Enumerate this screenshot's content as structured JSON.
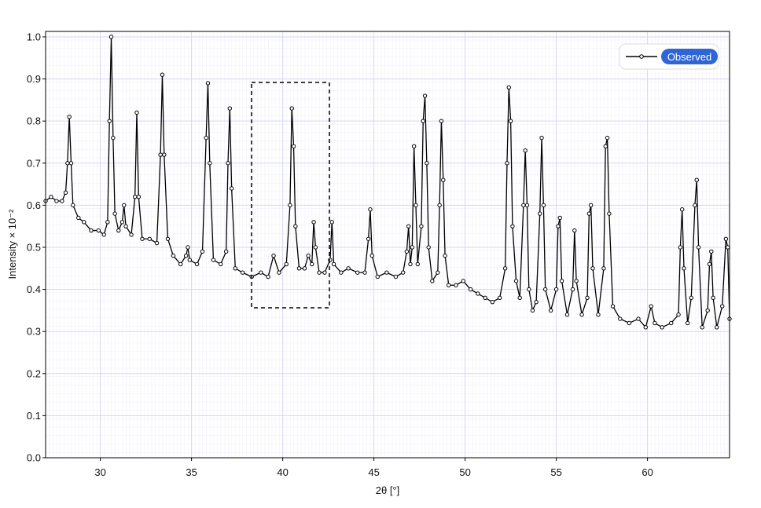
{
  "chart_data": {
    "type": "line",
    "xlabel": "2θ [°]",
    "ylabel": "Intensity × 10⁻²",
    "x": [
      27.0,
      27.3,
      27.6,
      27.9,
      28.1,
      28.2,
      28.3,
      28.4,
      28.5,
      28.8,
      29.1,
      29.5,
      29.9,
      30.2,
      30.4,
      30.5,
      30.6,
      30.7,
      30.8,
      31.0,
      31.2,
      31.3,
      31.4,
      31.7,
      31.9,
      32.0,
      32.1,
      32.3,
      32.7,
      33.1,
      33.3,
      33.4,
      33.5,
      33.7,
      34.0,
      34.4,
      34.7,
      34.8,
      34.9,
      35.3,
      35.6,
      35.8,
      35.9,
      36.0,
      36.2,
      36.6,
      36.9,
      37.0,
      37.1,
      37.2,
      37.4,
      37.8,
      38.3,
      38.8,
      39.2,
      39.5,
      39.8,
      40.2,
      40.4,
      40.5,
      40.6,
      40.7,
      40.9,
      41.2,
      41.4,
      41.6,
      41.7,
      41.8,
      42.0,
      42.3,
      42.6,
      42.7,
      42.8,
      43.2,
      43.6,
      44.1,
      44.5,
      44.7,
      44.8,
      44.9,
      45.2,
      45.7,
      46.2,
      46.6,
      46.8,
      46.9,
      47.0,
      47.1,
      47.2,
      47.3,
      47.4,
      47.6,
      47.7,
      47.8,
      47.9,
      48.0,
      48.2,
      48.5,
      48.6,
      48.7,
      48.8,
      48.9,
      49.1,
      49.5,
      49.9,
      50.3,
      50.7,
      51.1,
      51.5,
      51.9,
      52.2,
      52.3,
      52.4,
      52.5,
      52.6,
      52.8,
      53.0,
      53.2,
      53.3,
      53.4,
      53.5,
      53.7,
      53.9,
      54.1,
      54.2,
      54.3,
      54.4,
      54.7,
      55.0,
      55.1,
      55.2,
      55.3,
      55.6,
      55.9,
      56.0,
      56.1,
      56.4,
      56.7,
      56.8,
      56.9,
      57.0,
      57.3,
      57.6,
      57.7,
      57.8,
      57.9,
      58.1,
      58.5,
      59.0,
      59.5,
      59.9,
      60.2,
      60.4,
      60.8,
      61.3,
      61.7,
      61.8,
      61.9,
      62.0,
      62.2,
      62.4,
      62.6,
      62.7,
      62.8,
      63.0,
      63.3,
      63.4,
      63.5,
      63.6,
      63.8,
      64.1,
      64.3,
      64.4,
      64.5
    ],
    "series": [
      {
        "name": "Observed",
        "color": "#000000",
        "legend_color": "#2f66d6",
        "values": [
          0.61,
          0.62,
          0.61,
          0.61,
          0.63,
          0.7,
          0.81,
          0.7,
          0.6,
          0.57,
          0.56,
          0.54,
          0.54,
          0.53,
          0.56,
          0.8,
          1.0,
          0.76,
          0.58,
          0.54,
          0.56,
          0.6,
          0.55,
          0.53,
          0.62,
          0.82,
          0.62,
          0.52,
          0.52,
          0.51,
          0.72,
          0.91,
          0.72,
          0.52,
          0.48,
          0.46,
          0.48,
          0.5,
          0.47,
          0.46,
          0.49,
          0.76,
          0.89,
          0.7,
          0.47,
          0.46,
          0.49,
          0.7,
          0.83,
          0.64,
          0.45,
          0.44,
          0.43,
          0.44,
          0.43,
          0.48,
          0.44,
          0.46,
          0.6,
          0.83,
          0.74,
          0.55,
          0.45,
          0.45,
          0.48,
          0.46,
          0.56,
          0.5,
          0.44,
          0.44,
          0.47,
          0.56,
          0.46,
          0.44,
          0.45,
          0.44,
          0.44,
          0.52,
          0.59,
          0.48,
          0.43,
          0.44,
          0.43,
          0.44,
          0.49,
          0.55,
          0.46,
          0.5,
          0.74,
          0.6,
          0.46,
          0.55,
          0.8,
          0.86,
          0.7,
          0.5,
          0.42,
          0.44,
          0.6,
          0.8,
          0.66,
          0.48,
          0.41,
          0.41,
          0.42,
          0.4,
          0.39,
          0.38,
          0.37,
          0.38,
          0.45,
          0.7,
          0.88,
          0.8,
          0.55,
          0.42,
          0.38,
          0.6,
          0.73,
          0.6,
          0.4,
          0.35,
          0.37,
          0.58,
          0.76,
          0.6,
          0.4,
          0.35,
          0.4,
          0.55,
          0.57,
          0.42,
          0.34,
          0.4,
          0.54,
          0.42,
          0.34,
          0.38,
          0.58,
          0.6,
          0.45,
          0.34,
          0.45,
          0.74,
          0.76,
          0.58,
          0.36,
          0.33,
          0.32,
          0.33,
          0.31,
          0.36,
          0.32,
          0.31,
          0.32,
          0.34,
          0.5,
          0.59,
          0.45,
          0.32,
          0.38,
          0.6,
          0.66,
          0.5,
          0.31,
          0.35,
          0.46,
          0.49,
          0.38,
          0.31,
          0.36,
          0.52,
          0.5,
          0.33
        ]
      }
    ],
    "xlim": [
      27,
      64.5
    ],
    "ylim": [
      0,
      1.013
    ],
    "xticks": [
      30,
      35,
      40,
      45,
      50,
      55,
      60
    ],
    "yticks": [
      {
        "value": 0,
        "label": "0.0"
      },
      0.1,
      0.2,
      0.3,
      0.4,
      0.5,
      0.6,
      0.7,
      0.8,
      0.9,
      {
        "value": 1,
        "label": "1.0"
      }
    ],
    "grid": true,
    "legend": "upper right"
  }
}
